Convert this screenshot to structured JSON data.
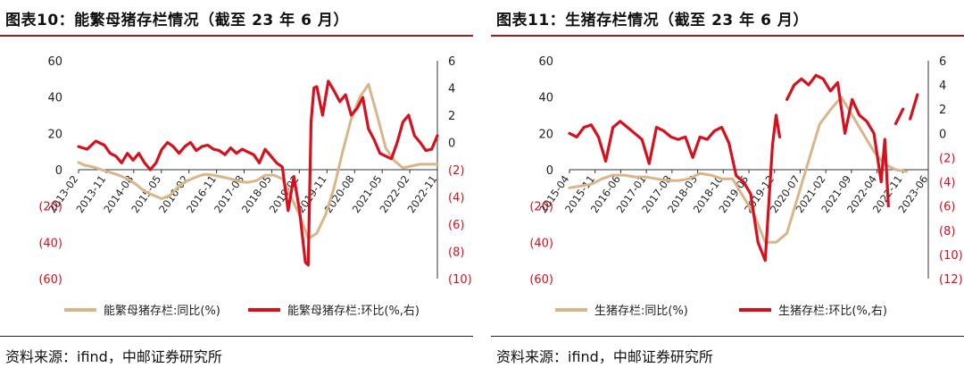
{
  "panels": [
    {
      "title": "图表10：能繁母猪存栏情况（截至 23 年 6 月）",
      "source": "资料来源：ifind，中邮证券研究所",
      "chart_data": {
        "type": "line",
        "left_axis": {
          "ticks": [
            60,
            40,
            20,
            0,
            -20,
            -40,
            -60
          ],
          "tick_labels": [
            "60",
            "40",
            "20",
            "0",
            "(20)",
            "(40)",
            "(60)"
          ],
          "ylim": [
            -60,
            60
          ]
        },
        "right_axis": {
          "ticks": [
            6,
            4,
            2,
            0,
            -2,
            -4,
            -6,
            -8,
            -10
          ],
          "tick_labels": [
            "6",
            "4",
            "2",
            "0",
            "(2)",
            "(4)",
            "(6)",
            "(8)",
            "(10)"
          ],
          "ylim": [
            -10,
            6
          ]
        },
        "x_range": [
          "2013-01",
          "2023-06"
        ],
        "x_tick_labels": [
          "2013-02",
          "2013-11",
          "2014-08",
          "2015-05",
          "2016-02",
          "2016-11",
          "2017-08",
          "2018-05",
          "2019-02",
          "2019-11",
          "2020-08",
          "2021-05",
          "2022-02",
          "2022-11"
        ],
        "series": [
          {
            "name": "能繁母猪存栏:同比(%)",
            "axis": "left",
            "color": "#d9b68a",
            "points": [
              [
                "2013-01",
                4
              ],
              [
                "2013-03",
                2.5
              ],
              [
                "2013-06",
                1.5
              ],
              [
                "2013-09",
                0
              ],
              [
                "2013-12",
                -1.5
              ],
              [
                "2014-03",
                -3
              ],
              [
                "2014-06",
                -5
              ],
              [
                "2014-09",
                -8
              ],
              [
                "2014-12",
                -12
              ],
              [
                "2015-03",
                -14
              ],
              [
                "2015-06",
                -16
              ],
              [
                "2015-09",
                -14
              ],
              [
                "2015-12",
                -9
              ],
              [
                "2016-03",
                -6
              ],
              [
                "2016-06",
                -4
              ],
              [
                "2016-09",
                -2.5
              ],
              [
                "2016-12",
                -3
              ],
              [
                "2017-03",
                -4
              ],
              [
                "2017-06",
                -5
              ],
              [
                "2017-09",
                -6.5
              ],
              [
                "2017-12",
                -7
              ],
              [
                "2018-03",
                -6
              ],
              [
                "2018-06",
                -3
              ],
              [
                "2018-09",
                -3
              ],
              [
                "2018-12",
                -5
              ],
              [
                "2019-03",
                -15
              ],
              [
                "2019-06",
                -25
              ],
              [
                "2019-09",
                -38
              ],
              [
                "2019-12",
                -35
              ],
              [
                "2020-03",
                -25
              ],
              [
                "2020-06",
                -10
              ],
              [
                "2020-09",
                10
              ],
              [
                "2020-12",
                28
              ],
              [
                "2021-03",
                40
              ],
              [
                "2021-06",
                47
              ],
              [
                "2021-09",
                30
              ],
              [
                "2021-12",
                12
              ],
              [
                "2022-03",
                5
              ],
              [
                "2022-06",
                1
              ],
              [
                "2022-09",
                2
              ],
              [
                "2022-12",
                3
              ],
              [
                "2023-03",
                3
              ],
              [
                "2023-06",
                3
              ]
            ]
          },
          {
            "name": "能繁母猪存栏:环比(%,右)",
            "axis": "right",
            "color": "#d7101d",
            "points": [
              [
                "2013-01",
                -0.3
              ],
              [
                "2013-04",
                -0.5
              ],
              [
                "2013-07",
                0.1
              ],
              [
                "2013-10",
                -0.2
              ],
              [
                "2013-12",
                -0.8
              ],
              [
                "2014-02",
                -1.0
              ],
              [
                "2014-04",
                -1.5
              ],
              [
                "2014-06",
                -0.8
              ],
              [
                "2014-08",
                -1.3
              ],
              [
                "2014-10",
                -0.8
              ],
              [
                "2014-12",
                -1.5
              ],
              [
                "2015-02",
                -2.0
              ],
              [
                "2015-04",
                -1.5
              ],
              [
                "2015-06",
                -0.5
              ],
              [
                "2015-08",
                0.0
              ],
              [
                "2015-10",
                -0.3
              ],
              [
                "2015-12",
                -0.8
              ],
              [
                "2016-02",
                -0.3
              ],
              [
                "2016-04",
                0.0
              ],
              [
                "2016-06",
                -0.6
              ],
              [
                "2016-08",
                -0.3
              ],
              [
                "2016-10",
                -0.2
              ],
              [
                "2016-12",
                -0.5
              ],
              [
                "2017-02",
                -0.6
              ],
              [
                "2017-04",
                -0.9
              ],
              [
                "2017-06",
                -0.4
              ],
              [
                "2017-08",
                -0.8
              ],
              [
                "2017-10",
                -0.5
              ],
              [
                "2017-12",
                -0.7
              ],
              [
                "2018-02",
                -0.9
              ],
              [
                "2018-04",
                -1.5
              ],
              [
                "2018-06",
                -0.5
              ],
              [
                "2018-08",
                -1.0
              ],
              [
                "2018-10",
                -1.5
              ],
              [
                "2018-12",
                -1.8
              ],
              [
                "2019-02",
                -5.0
              ],
              [
                "2019-04",
                -2.5
              ],
              [
                "2019-06",
                -5.0
              ],
              [
                "2019-08",
                -8.8
              ],
              [
                "2019-09",
                -9.0
              ],
              [
                "2019-10",
                1.5
              ],
              [
                "2019-11",
                4.0
              ],
              [
                "2019-12",
                4.1
              ],
              [
                "2020-02",
                2.0
              ],
              [
                "2020-04",
                4.5
              ],
              [
                "2020-06",
                3.8
              ],
              [
                "2020-08",
                3.0
              ],
              [
                "2020-10",
                3.5
              ],
              [
                "2020-12",
                2.0
              ],
              [
                "2021-02",
                2.5
              ],
              [
                "2021-04",
                3.3
              ],
              [
                "2021-06",
                1.0
              ],
              [
                "2021-08",
                0.2
              ],
              [
                "2021-10",
                -0.8
              ],
              [
                "2021-12",
                -1.0
              ],
              [
                "2022-02",
                -1.2
              ],
              [
                "2022-04",
                0.0
              ],
              [
                "2022-06",
                1.5
              ],
              [
                "2022-08",
                2.0
              ],
              [
                "2022-10",
                0.5
              ],
              [
                "2022-12",
                0.0
              ],
              [
                "2023-02",
                -0.6
              ],
              [
                "2023-04",
                -0.5
              ],
              [
                "2023-06",
                0.5
              ]
            ]
          }
        ],
        "legend_position": "bottom"
      }
    },
    {
      "title": "图表11：生猪存栏情况（截至 23 年 6 月）",
      "source": "资料来源：ifind，中邮证券研究所",
      "chart_data": {
        "type": "line",
        "left_axis": {
          "ticks": [
            60,
            40,
            20,
            0,
            -20,
            -40,
            -60
          ],
          "tick_labels": [
            "60",
            "40",
            "20",
            "0",
            "(20)",
            "(40)",
            "(60)"
          ],
          "ylim": [
            -60,
            60
          ]
        },
        "right_axis": {
          "ticks": [
            6,
            4,
            2,
            0,
            -2,
            -4,
            -6,
            -8,
            -10,
            -12
          ],
          "tick_labels": [
            "6",
            "4",
            "2",
            "0",
            "(2)",
            "(4)",
            "(6)",
            "(8)",
            "(10)",
            "(12)"
          ],
          "ylim": [
            -12,
            6
          ]
        },
        "x_range": [
          "2015-03",
          "2023-06"
        ],
        "x_tick_labels": [
          "2015-04",
          "2015-11",
          "2016-06",
          "2017-01",
          "2017-08",
          "2018-03",
          "2018-10",
          "2019-05",
          "2019-12",
          "2020-07",
          "2021-02",
          "2021-09",
          "2022-04",
          "2022-11",
          "2023-06"
        ],
        "series": [
          {
            "name": "生猪存栏:同比(%)",
            "axis": "left",
            "color": "#d9b68a",
            "points": [
              [
                "2015-03",
                -10
              ],
              [
                "2015-06",
                -9
              ],
              [
                "2015-09",
                -8
              ],
              [
                "2015-12",
                -5
              ],
              [
                "2016-03",
                -3
              ],
              [
                "2016-06",
                -3
              ],
              [
                "2016-09",
                -4
              ],
              [
                "2016-12",
                -4
              ],
              [
                "2017-03",
                -5
              ],
              [
                "2017-06",
                -6
              ],
              [
                "2017-09",
                -6
              ],
              [
                "2017-12",
                -5
              ],
              [
                "2018-03",
                -2
              ],
              [
                "2018-06",
                -3
              ],
              [
                "2018-09",
                -5
              ],
              [
                "2018-12",
                -5
              ],
              [
                "2019-03",
                -15
              ],
              [
                "2019-06",
                -25
              ],
              [
                "2019-09",
                -40
              ],
              [
                "2019-12",
                -40
              ],
              [
                "2020-03",
                -35
              ],
              [
                "2020-06",
                -15
              ],
              [
                "2020-09",
                5
              ],
              [
                "2020-12",
                25
              ],
              [
                "2021-03",
                33
              ],
              [
                "2021-06",
                40
              ],
              [
                "2021-09",
                30
              ],
              [
                "2021-12",
                20
              ],
              [
                "2022-03",
                10
              ],
              [
                "2022-06",
                3
              ],
              [
                "2022-09",
                0
              ],
              [
                "2022-12",
                -1
              ]
            ]
          },
          {
            "name": "生猪存栏:环比(%,右)",
            "axis": "right",
            "color": "#d7101d",
            "segments": [
              [
                [
                  "2015-03",
                  0.0
                ],
                [
                  "2015-05",
                  -0.3
                ],
                [
                  "2015-07",
                  0.5
                ],
                [
                  "2015-09",
                  0.7
                ],
                [
                  "2015-11",
                  -0.3
                ],
                [
                  "2016-01",
                  -2.3
                ],
                [
                  "2016-03",
                  0.5
                ],
                [
                  "2016-05",
                  1.0
                ],
                [
                  "2016-07",
                  0.5
                ],
                [
                  "2016-09",
                  0.0
                ],
                [
                  "2016-11",
                  -0.5
                ],
                [
                  "2017-01",
                  -2.5
                ],
                [
                  "2017-03",
                  0.5
                ],
                [
                  "2017-05",
                  0.2
                ],
                [
                  "2017-07",
                  -0.3
                ],
                [
                  "2017-09",
                  -0.5
                ],
                [
                  "2017-11",
                  -0.3
                ],
                [
                  "2018-01",
                  -2.0
                ],
                [
                  "2018-03",
                  -0.3
                ],
                [
                  "2018-05",
                  -0.5
                ],
                [
                  "2018-07",
                  0.2
                ],
                [
                  "2018-09",
                  0.5
                ],
                [
                  "2018-11",
                  -0.8
                ],
                [
                  "2019-01",
                  -3.5
                ],
                [
                  "2019-03",
                  -4.0
                ],
                [
                  "2019-05",
                  -5.0
                ],
                [
                  "2019-07",
                  -9.0
                ],
                [
                  "2019-09",
                  -10.5
                ],
                [
                  "2019-11",
                  -1.0
                ],
                [
                  "2019-12",
                  1.5
                ],
                [
                  "2020-01",
                  -0.3
                ]
              ],
              [
                [
                  "2020-03",
                  2.8
                ],
                [
                  "2020-05",
                  4.0
                ],
                [
                  "2020-07",
                  4.5
                ],
                [
                  "2020-09",
                  4.0
                ],
                [
                  "2020-11",
                  4.8
                ],
                [
                  "2021-01",
                  4.5
                ],
                [
                  "2021-03",
                  3.5
                ],
                [
                  "2021-05",
                  4.2
                ],
                [
                  "2021-07",
                  0.0
                ],
                [
                  "2021-09",
                  2.8
                ],
                [
                  "2021-11",
                  1.5
                ],
                [
                  "2022-01",
                  1.0
                ],
                [
                  "2022-03",
                  0.0
                ],
                [
                  "2022-05",
                  -4.0
                ],
                [
                  "2022-06",
                  -0.5
                ],
                [
                  "2022-07",
                  -6.0
                ]
              ],
              [
                [
                  "2022-09",
                  0.8
                ],
                [
                  "2022-11",
                  2.0
                ]
              ],
              [
                [
                  "2023-01",
                  1.2
                ],
                [
                  "2023-03",
                  3.2
                ]
              ]
            ]
          }
        ],
        "legend_position": "bottom"
      }
    }
  ]
}
